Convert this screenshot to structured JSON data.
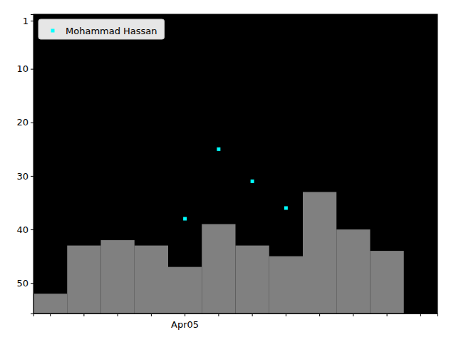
{
  "chart_data": {
    "type": "scatter",
    "categories": [
      null,
      null,
      null,
      null,
      "Apr05",
      null,
      null,
      null,
      null,
      null,
      null,
      null
    ],
    "series": [
      {
        "type": "bar",
        "color": "#808080",
        "values": [
          52,
          43,
          42,
          43,
          47,
          39,
          43,
          45,
          33,
          40,
          44,
          null
        ]
      },
      {
        "type": "scatter",
        "name": "Mohammad Hassan",
        "color": "#00ffff",
        "marker": "square",
        "values": [
          null,
          null,
          null,
          null,
          38,
          25,
          31,
          36,
          null,
          null,
          null,
          null
        ]
      }
    ],
    "ylim": [
      55.7,
      -0.2
    ],
    "yticks": [
      1,
      10,
      20,
      30,
      40,
      50
    ],
    "grid": false,
    "legend": "upper left"
  }
}
